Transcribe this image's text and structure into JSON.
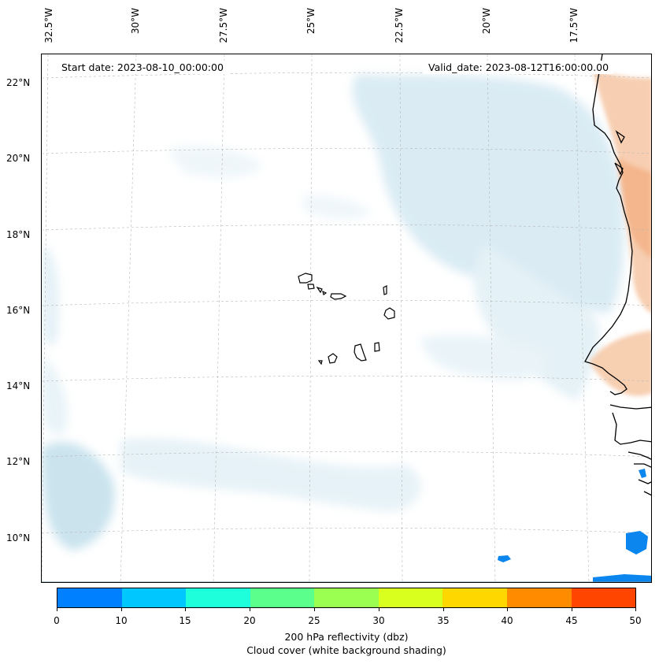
{
  "map": {
    "lon_labels": [
      "32.5°W",
      "30°W",
      "27.5°W",
      "25°W",
      "22.5°W",
      "20°W",
      "17.5°W"
    ],
    "lat_labels": [
      "22°N",
      "20°N",
      "18°N",
      "16°N",
      "14°N",
      "12°N",
      "10°N"
    ],
    "start_date": "Start date: 2023-08-10_00:00:00",
    "valid_date": "Valid_date: 2023-08-12T16:00:00.00"
  },
  "colorbar": {
    "colors": [
      "#0080ff",
      "#00c8ff",
      "#1effdc",
      "#5aff8c",
      "#9aff50",
      "#d8ff1e",
      "#ffd700",
      "#ff8c00",
      "#ff4500"
    ],
    "ticks": [
      "0",
      "10",
      "15",
      "20",
      "25",
      "30",
      "35",
      "40",
      "45",
      "50"
    ],
    "label_line1": "200 hPa reflectivity (dbz)",
    "label_line2": "Cloud cover (white background shading)"
  }
}
